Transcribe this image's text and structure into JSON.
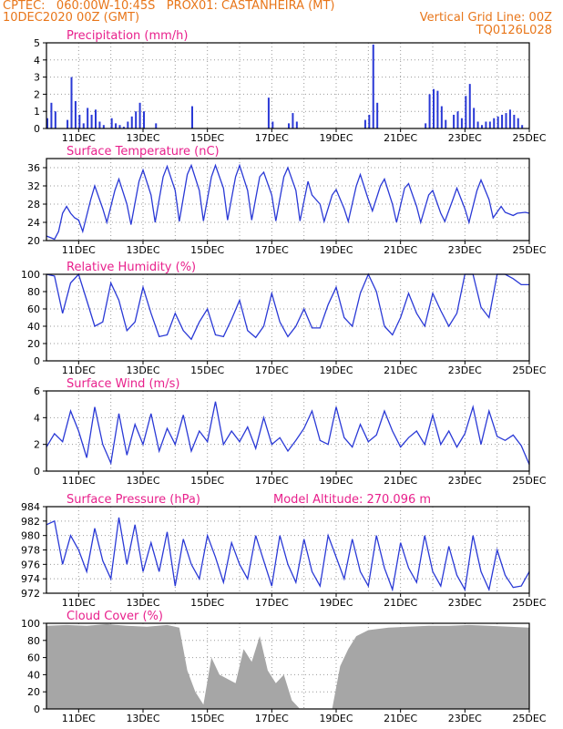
{
  "header": {
    "line1": "CPTEC:   060:00W-10:45S   PROX01: CASTANHEIRA (MT)",
    "line2_left": "10DEC2020 00Z (GMT)",
    "line2_right": "Vertical Grid Line: 00Z",
    "line3_right": "TQ0126L028"
  },
  "x_tick_labels": [
    "11DEC",
    "13DEC",
    "15DEC",
    "17DEC",
    "19DEC",
    "21DEC",
    "23DEC",
    "25DEC"
  ],
  "x_range_hours": [
    0,
    360
  ],
  "colors": {
    "header": "#e8761a",
    "title": "#e8208c",
    "line": "#2a39d6",
    "cloud": "#a6a6a6"
  },
  "chart_data": [
    {
      "type": "bar",
      "title": "Precipitation (mm/h)",
      "ylim": [
        0,
        5
      ],
      "yticks": [
        0,
        1,
        2,
        3,
        4,
        5
      ],
      "x": [
        0,
        3,
        6,
        15,
        18,
        21,
        24,
        27,
        30,
        33,
        36,
        39,
        42,
        48,
        51,
        54,
        57,
        60,
        63,
        66,
        69,
        72,
        81,
        108,
        165,
        168,
        180,
        183,
        186,
        237,
        240,
        243,
        246,
        282,
        285,
        288,
        291,
        294,
        297,
        303,
        306,
        309,
        312,
        315,
        318,
        321,
        324,
        327,
        330,
        333,
        336,
        339,
        342,
        345,
        348,
        351,
        354
      ],
      "values": [
        0.6,
        1.5,
        1.0,
        0.5,
        3.0,
        1.6,
        0.8,
        0.3,
        1.2,
        0.8,
        1.1,
        0.4,
        0.2,
        0.6,
        0.3,
        0.2,
        0.1,
        0.4,
        0.7,
        1.0,
        1.5,
        1.0,
        0.3,
        1.3,
        1.8,
        0.4,
        0.3,
        0.9,
        0.4,
        0.5,
        0.8,
        4.9,
        1.5,
        0.3,
        2.0,
        2.3,
        2.2,
        1.3,
        0.5,
        0.8,
        1.0,
        0.6,
        1.9,
        2.6,
        1.2,
        0.4,
        0.2,
        0.4,
        0.4,
        0.6,
        0.7,
        0.8,
        0.9,
        1.1,
        0.8,
        0.6,
        0.2
      ]
    },
    {
      "type": "line",
      "title": "Surface Temperature (nC)",
      "ylim": [
        20,
        38
      ],
      "yticks": [
        20,
        24,
        28,
        32,
        36
      ],
      "x": [
        0,
        6,
        9,
        12,
        15,
        18,
        21,
        24,
        27,
        33,
        36,
        42,
        45,
        51,
        54,
        60,
        63,
        69,
        72,
        78,
        81,
        87,
        90,
        96,
        99,
        105,
        108,
        114,
        117,
        123,
        126,
        132,
        135,
        141,
        144,
        150,
        153,
        159,
        162,
        168,
        171,
        177,
        180,
        186,
        189,
        195,
        198,
        204,
        207,
        213,
        216,
        222,
        225,
        231,
        234,
        240,
        243,
        249,
        252,
        258,
        261,
        267,
        270,
        276,
        279,
        285,
        288,
        294,
        297,
        303,
        306,
        312,
        315,
        321,
        324,
        330,
        333,
        339,
        342,
        348,
        351,
        357,
        360
      ],
      "values": [
        21.0,
        20.3,
        22.0,
        26.0,
        27.5,
        26.0,
        25.0,
        24.5,
        22.0,
        29.0,
        32.0,
        27.0,
        24.0,
        31.0,
        33.5,
        28.0,
        23.5,
        33.0,
        35.5,
        30.0,
        24.0,
        34.0,
        36.3,
        31.0,
        24.2,
        34.5,
        36.5,
        31.0,
        24.3,
        34.0,
        36.5,
        31.5,
        24.5,
        34.0,
        36.5,
        31.0,
        24.5,
        34.0,
        35.0,
        30.0,
        24.3,
        34.0,
        36.0,
        31.0,
        24.3,
        33.0,
        30.0,
        28.0,
        24.2,
        30.0,
        31.2,
        27.0,
        24.2,
        32.0,
        34.5,
        29.0,
        26.5,
        32.0,
        33.5,
        28.0,
        24.0,
        31.5,
        32.5,
        27.5,
        24.0,
        30.0,
        31.0,
        26.0,
        24.2,
        29.0,
        31.5,
        27.0,
        24.0,
        31.0,
        33.3,
        29.0,
        25.0,
        27.5,
        26.2,
        25.5,
        26.0,
        26.2,
        26.0
      ]
    },
    {
      "type": "line",
      "title": "Relative Humidity (%)",
      "ylim": [
        0,
        100
      ],
      "yticks": [
        0,
        20,
        40,
        60,
        80,
        100
      ],
      "x": [
        0,
        6,
        12,
        18,
        24,
        30,
        36,
        42,
        48,
        54,
        60,
        66,
        72,
        78,
        84,
        90,
        96,
        102,
        108,
        114,
        120,
        126,
        132,
        138,
        144,
        150,
        156,
        162,
        168,
        174,
        180,
        186,
        192,
        198,
        204,
        210,
        216,
        222,
        228,
        234,
        240,
        246,
        252,
        258,
        264,
        270,
        276,
        282,
        288,
        294,
        300,
        306,
        312,
        318,
        324,
        330,
        336,
        342,
        348,
        354,
        360
      ],
      "values": [
        100,
        98,
        55,
        90,
        100,
        70,
        40,
        45,
        90,
        70,
        35,
        45,
        85,
        55,
        28,
        30,
        55,
        35,
        25,
        45,
        60,
        30,
        28,
        48,
        70,
        35,
        27,
        40,
        78,
        45,
        28,
        40,
        60,
        38,
        38,
        65,
        85,
        50,
        40,
        78,
        100,
        80,
        40,
        30,
        50,
        78,
        55,
        40,
        78,
        58,
        40,
        55,
        100,
        100,
        62,
        50,
        100,
        100,
        95,
        88,
        88
      ]
    },
    {
      "type": "line",
      "title": "Surface Wind (m/s)",
      "ylim": [
        0,
        6
      ],
      "yticks": [
        0,
        2,
        4,
        6
      ],
      "x": [
        0,
        6,
        12,
        18,
        24,
        30,
        36,
        42,
        48,
        54,
        60,
        66,
        72,
        78,
        84,
        90,
        96,
        102,
        108,
        114,
        120,
        126,
        132,
        138,
        144,
        150,
        156,
        162,
        168,
        174,
        180,
        186,
        192,
        198,
        204,
        210,
        216,
        222,
        228,
        234,
        240,
        246,
        252,
        258,
        264,
        270,
        276,
        282,
        288,
        294,
        300,
        306,
        312,
        318,
        324,
        330,
        336,
        342,
        348,
        354,
        360
      ],
      "values": [
        1.8,
        2.8,
        2.2,
        4.5,
        3.0,
        1.0,
        4.8,
        2.0,
        0.6,
        4.3,
        1.2,
        3.5,
        2.0,
        4.3,
        1.5,
        3.2,
        2.0,
        4.2,
        1.5,
        3.0,
        2.2,
        5.2,
        2.0,
        3.0,
        2.2,
        3.3,
        1.7,
        4.0,
        2.0,
        2.5,
        1.5,
        2.3,
        3.2,
        4.5,
        2.3,
        2.0,
        4.8,
        2.5,
        1.8,
        3.5,
        2.2,
        2.7,
        4.5,
        3.0,
        1.8,
        2.5,
        3.0,
        2.0,
        4.2,
        2.0,
        3.0,
        1.8,
        2.8,
        4.8,
        2.0,
        4.5,
        2.6,
        2.3,
        2.7,
        1.9,
        0.5
      ]
    },
    {
      "type": "line",
      "title": "Surface Pressure (hPa)",
      "subtitle": "Model Altitude: 270.096 m",
      "ylim": [
        972,
        984
      ],
      "yticks": [
        972,
        974,
        976,
        978,
        980,
        982,
        984
      ],
      "x": [
        0,
        6,
        12,
        18,
        24,
        30,
        36,
        42,
        48,
        54,
        60,
        66,
        72,
        78,
        84,
        90,
        96,
        102,
        108,
        114,
        120,
        126,
        132,
        138,
        144,
        150,
        156,
        162,
        168,
        174,
        180,
        186,
        192,
        198,
        204,
        210,
        216,
        222,
        228,
        234,
        240,
        246,
        252,
        258,
        264,
        270,
        276,
        282,
        288,
        294,
        300,
        306,
        312,
        318,
        324,
        330,
        336,
        342,
        348,
        354,
        360
      ],
      "values": [
        981.5,
        982.0,
        976.0,
        980.0,
        978.0,
        975.0,
        981.0,
        976.5,
        974.0,
        982.5,
        976.0,
        981.5,
        975.0,
        979.0,
        975.0,
        980.5,
        973.0,
        979.5,
        976.0,
        974.0,
        980.0,
        977.0,
        973.5,
        979.0,
        976.0,
        974.0,
        980.0,
        976.5,
        973.0,
        980.0,
        976.0,
        973.5,
        979.5,
        975.0,
        973.0,
        980.0,
        977.0,
        974.0,
        979.5,
        975.0,
        973.0,
        980.0,
        975.5,
        972.5,
        979.0,
        975.5,
        973.5,
        980.0,
        975.0,
        973.0,
        978.5,
        974.5,
        972.5,
        980.0,
        975.0,
        972.5,
        978.0,
        974.5,
        972.8,
        973.0,
        975.0
      ]
    },
    {
      "type": "area",
      "title": "Cloud Cover (%)",
      "ylim": [
        0,
        100
      ],
      "yticks": [
        0,
        20,
        40,
        60,
        80,
        100
      ],
      "x": [
        0,
        15,
        30,
        45,
        60,
        75,
        90,
        99,
        105,
        111,
        117,
        123,
        129,
        135,
        141,
        147,
        153,
        159,
        165,
        171,
        177,
        183,
        189,
        195,
        201,
        207,
        213,
        219,
        225,
        231,
        240,
        255,
        270,
        285,
        300,
        315,
        330,
        345,
        360
      ],
      "values": [
        97,
        98,
        97,
        99,
        97,
        96,
        98,
        95,
        45,
        20,
        5,
        60,
        40,
        35,
        30,
        70,
        55,
        85,
        45,
        30,
        40,
        10,
        0,
        0,
        0,
        0,
        0,
        50,
        70,
        85,
        92,
        95,
        96,
        97,
        97,
        98,
        97,
        96,
        95
      ]
    }
  ]
}
